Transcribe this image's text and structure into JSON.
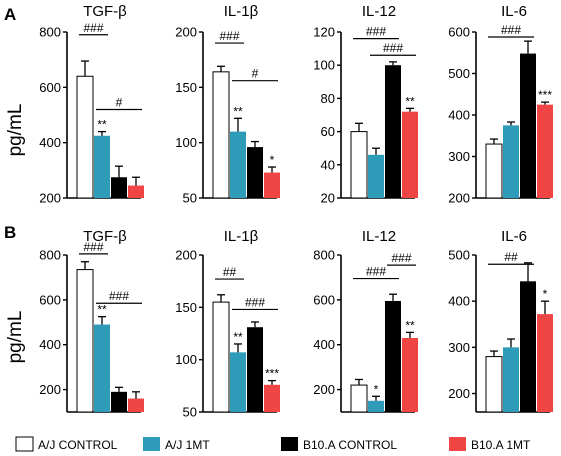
{
  "panel_labels": [
    "A",
    "B"
  ],
  "ylabel": "pg/mL",
  "colors": {
    "A/J CONTROL": "#ffffff",
    "A/J 1MT": "#2e9bb8",
    "B10.A CONTROL": "#000000",
    "B10.A 1MT": "#f04545"
  },
  "legend": [
    "A/J CONTROL",
    "A/J 1MT",
    "B10.A CONTROL",
    "B10.A 1MT"
  ],
  "chart_data": [
    {
      "type": "bar",
      "panel": "A",
      "title": "TGF-β",
      "ylim": [
        200,
        800
      ],
      "yticks": [
        200,
        400,
        600,
        800
      ],
      "categories": [
        "A/J CONTROL",
        "A/J 1MT",
        "B10.A CONTROL",
        "B10.A 1MT"
      ],
      "values": [
        640,
        425,
        275,
        245
      ],
      "errors": [
        55,
        15,
        40,
        30
      ],
      "bar_labels": [
        "",
        "**",
        "",
        ""
      ],
      "brackets": [
        {
          "from": 0,
          "to": 1,
          "level": 790,
          "label": "###"
        },
        {
          "from": 1,
          "to": 3,
          "level": 520,
          "label": "#"
        }
      ]
    },
    {
      "type": "bar",
      "panel": "A",
      "title": "IL-1β",
      "ylim": [
        50,
        200
      ],
      "yticks": [
        50,
        100,
        150,
        200
      ],
      "categories": [
        "A/J CONTROL",
        "A/J 1MT",
        "B10.A CONTROL",
        "B10.A 1MT"
      ],
      "values": [
        164,
        110,
        96,
        73
      ],
      "errors": [
        5,
        12,
        5,
        5
      ],
      "bar_labels": [
        "",
        "**",
        "",
        "*"
      ],
      "brackets": [
        {
          "from": 0,
          "to": 1,
          "level": 190,
          "label": "###"
        },
        {
          "from": 1,
          "to": 3,
          "level": 156,
          "label": "#"
        }
      ]
    },
    {
      "type": "bar",
      "panel": "A",
      "title": "IL-12",
      "ylim": [
        20,
        120
      ],
      "yticks": [
        20,
        40,
        60,
        80,
        100,
        120
      ],
      "categories": [
        "A/J CONTROL",
        "A/J 1MT",
        "B10.A CONTROL",
        "B10.A 1MT"
      ],
      "values": [
        60,
        46,
        100,
        72
      ],
      "errors": [
        5,
        4,
        2,
        2
      ],
      "bar_labels": [
        "",
        "",
        "",
        "**"
      ],
      "brackets": [
        {
          "from": 0,
          "to": 2,
          "level": 116,
          "label": "###"
        },
        {
          "from": 1,
          "to": 3,
          "level": 106,
          "label": "###"
        }
      ]
    },
    {
      "type": "bar",
      "panel": "A",
      "title": "IL-6",
      "ylim": [
        200,
        600
      ],
      "yticks": [
        200,
        300,
        400,
        500,
        600
      ],
      "categories": [
        "A/J CONTROL",
        "A/J 1MT",
        "B10.A CONTROL",
        "B10.A 1MT"
      ],
      "values": [
        330,
        375,
        548,
        425
      ],
      "errors": [
        12,
        8,
        30,
        6
      ],
      "bar_labels": [
        "",
        "",
        "",
        "***"
      ],
      "brackets": [
        {
          "from": 0,
          "to": 2,
          "level": 588,
          "label": "###"
        }
      ]
    },
    {
      "type": "bar",
      "panel": "B",
      "title": "TGF-β",
      "ylim": [
        100,
        800
      ],
      "yticks": [
        200,
        400,
        600,
        800
      ],
      "categories": [
        "A/J CONTROL",
        "A/J 1MT",
        "B10.A CONTROL",
        "B10.A 1MT"
      ],
      "values": [
        735,
        490,
        190,
        160
      ],
      "errors": [
        35,
        35,
        20,
        30
      ],
      "bar_labels": [
        "",
        "**",
        "",
        ""
      ],
      "brackets": [
        {
          "from": 0,
          "to": 1,
          "level": 805,
          "label": "###"
        },
        {
          "from": 1,
          "to": 3,
          "level": 585,
          "label": "###"
        }
      ]
    },
    {
      "type": "bar",
      "panel": "B",
      "title": "IL-1β",
      "ylim": [
        50,
        200
      ],
      "yticks": [
        50,
        100,
        150,
        200
      ],
      "categories": [
        "A/J CONTROL",
        "A/J 1MT",
        "B10.A CONTROL",
        "B10.A 1MT"
      ],
      "values": [
        155,
        107,
        131,
        76
      ],
      "errors": [
        7,
        8,
        5,
        4
      ],
      "bar_labels": [
        "",
        "**",
        "",
        "***"
      ],
      "brackets": [
        {
          "from": 0,
          "to": 1,
          "level": 177,
          "label": "##"
        },
        {
          "from": 1,
          "to": 3,
          "level": 148,
          "label": "###"
        }
      ]
    },
    {
      "type": "bar",
      "panel": "B",
      "title": "IL-12",
      "ylim": [
        100,
        800
      ],
      "yticks": [
        200,
        400,
        600,
        800
      ],
      "categories": [
        "A/J CONTROL",
        "A/J 1MT",
        "B10.A CONTROL",
        "B10.A 1MT"
      ],
      "values": [
        220,
        150,
        595,
        430
      ],
      "errors": [
        25,
        20,
        30,
        25
      ],
      "bar_labels": [
        "",
        "*",
        "",
        "**"
      ],
      "brackets": [
        {
          "from": 0,
          "to": 2,
          "level": 695,
          "label": "###"
        },
        {
          "from": 2,
          "to": 3,
          "level": 755,
          "label": "###"
        }
      ]
    },
    {
      "type": "bar",
      "panel": "B",
      "title": "IL-6",
      "ylim": [
        160,
        500
      ],
      "yticks": [
        200,
        300,
        400,
        500
      ],
      "categories": [
        "A/J CONTROL",
        "A/J 1MT",
        "B10.A CONTROL",
        "B10.A 1MT"
      ],
      "values": [
        280,
        300,
        443,
        372
      ],
      "errors": [
        12,
        18,
        40,
        28
      ],
      "bar_labels": [
        "",
        "",
        "",
        "*"
      ],
      "brackets": [
        {
          "from": 0,
          "to": 2,
          "level": 480,
          "label": "##"
        }
      ]
    }
  ]
}
